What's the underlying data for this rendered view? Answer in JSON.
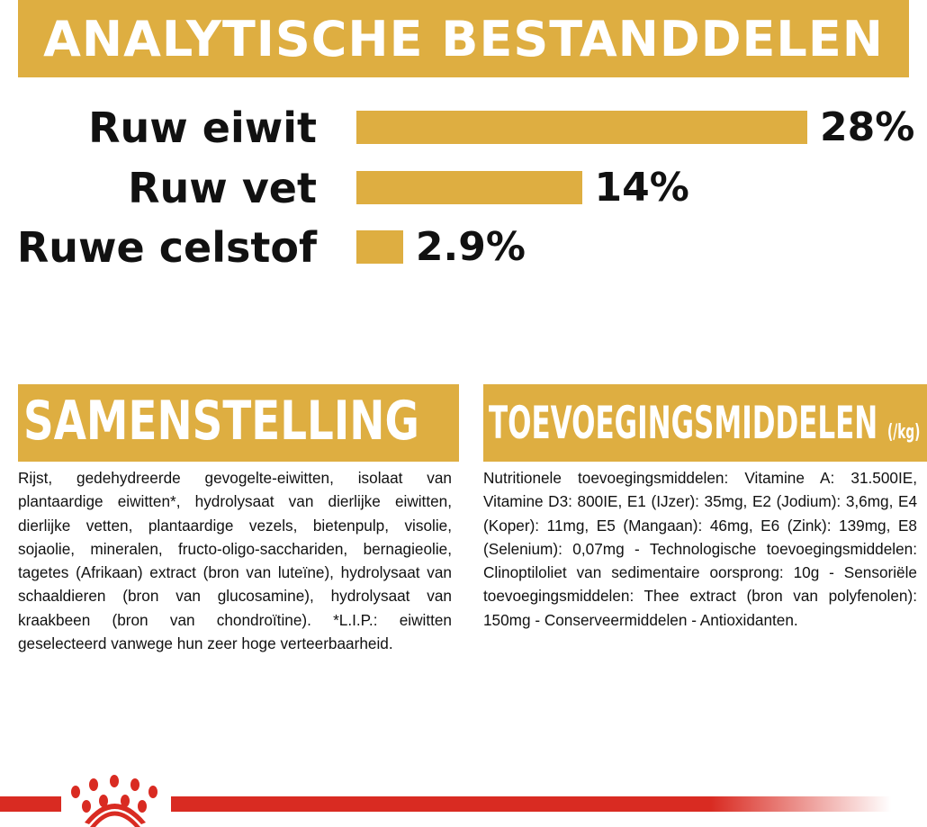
{
  "header": {
    "title": "ANALYTISCHE BESTANDDELEN"
  },
  "analysis": {
    "items": [
      {
        "label": "Ruw eiwit",
        "value": 28,
        "value_label": "28%"
      },
      {
        "label": "Ruw vet",
        "value": 14,
        "value_label": "14%"
      },
      {
        "label": "Ruwe celstof",
        "value": 2.9,
        "value_label": "2.9%"
      }
    ],
    "bar_color": "#deae41"
  },
  "composition": {
    "title": "SAMENSTELLING",
    "text": "Rijst, gedehydreerde gevogelte-eiwitten, isolaat van plantaardige eiwitten*, hydrolysaat van dierlijke eiwitten, dierlijke vetten, plantaardige vezels, bietenpulp, visolie, sojaolie, mineralen, fructo-oligo-sacchariden, bernagieolie, tagetes (Afrikaan) extract (bron van luteïne), hydrolysaat van schaaldieren (bron van glucosamine), hydrolysaat van kraakbeen (bron van chondroïtine). *L.I.P.: eiwitten geselecteerd vanwege hun zeer hoge verteerbaarheid."
  },
  "additives": {
    "title": "TOEVOEGINGSMIDDELEN",
    "unit": "(/kg)",
    "text": "Nutritionele toevoegingsmiddelen: Vitamine A: 31.500IE, Vitamine D3: 800IE, E1 (IJzer): 35mg, E2 (Jodium): 3,6mg, E4 (Koper): 11mg, E5 (Mangaan): 46mg, E6 (Zink): 139mg, E8 (Selenium): 0,07mg - Technologische toevoegingsmiddelen: Clinoptiloliet van sedimentaire oorsprong: 10g - Sensoriële toevoegingsmiddelen: Thee extract (bron van polyfenolen): 150mg - Conserveermiddelen - Antioxidanten."
  },
  "footer": {
    "logo_icon": "royal-canin-crown-icon",
    "accent_color": "#d92b22"
  }
}
